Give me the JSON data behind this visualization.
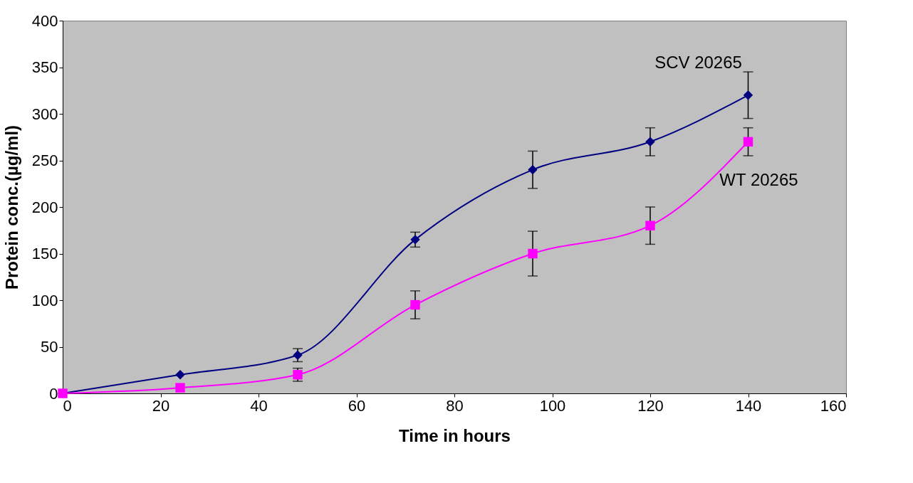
{
  "chart_data": {
    "type": "line",
    "xlabel": "Time in hours",
    "ylabel": "Protein conc.(µg/ml)",
    "x": [
      0,
      24,
      48,
      72,
      96,
      120,
      140
    ],
    "series": [
      {
        "name": "SCV 20265",
        "color": "#000080",
        "marker": "diamond",
        "values": [
          0,
          20,
          41,
          165,
          240,
          270,
          320
        ],
        "errors": [
          null,
          null,
          7,
          8,
          20,
          15,
          25
        ]
      },
      {
        "name": "WT 20265",
        "color": "#ff00ff",
        "marker": "square",
        "values": [
          0,
          6,
          20,
          95,
          150,
          180,
          270
        ],
        "errors": [
          null,
          null,
          7,
          15,
          24,
          20,
          15
        ]
      }
    ],
    "xlim": [
      0,
      160
    ],
    "xticks": [
      0,
      20,
      40,
      60,
      80,
      100,
      120,
      140,
      160
    ],
    "ylim": [
      0,
      400
    ],
    "yticks": [
      0,
      50,
      100,
      150,
      200,
      250,
      300,
      350,
      400
    ],
    "grid": false,
    "legend": false,
    "line_style": "solid"
  }
}
